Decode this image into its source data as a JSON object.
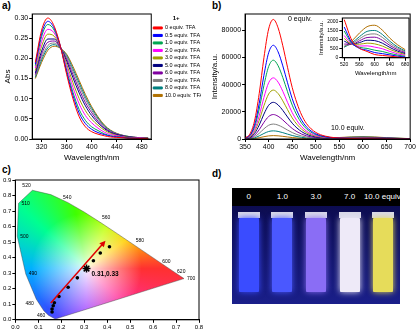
{
  "chart_data": [
    {
      "type": "line",
      "title": "a)",
      "x_label": "Wavelength/nm",
      "y_label": "Abs",
      "x": [
        310,
        320,
        330,
        340,
        350,
        360,
        370,
        380,
        390,
        400,
        410,
        420,
        430,
        440,
        450,
        460,
        470,
        480,
        490
      ],
      "series": [
        {
          "name": "0 equiv. TFA",
          "color": "#ff0000",
          "values": [
            0.19,
            0.27,
            0.3,
            0.28,
            0.23,
            0.16,
            0.1,
            0.055,
            0.03,
            0.018,
            0.012,
            0.008,
            0.005,
            0.004,
            0.003,
            0.002,
            0.002,
            0.001,
            0.001
          ]
        },
        {
          "name": "0.5 equiv. TFA",
          "color": "#0000ff",
          "values": [
            0.186,
            0.262,
            0.292,
            0.275,
            0.23,
            0.165,
            0.108,
            0.064,
            0.038,
            0.024,
            0.016,
            0.011,
            0.007,
            0.005,
            0.004,
            0.002,
            0.002,
            0.001,
            0.001
          ]
        },
        {
          "name": "1.0 equiv. TFA",
          "color": "#00a651",
          "values": [
            0.182,
            0.254,
            0.284,
            0.27,
            0.229,
            0.17,
            0.116,
            0.073,
            0.046,
            0.03,
            0.021,
            0.013,
            0.008,
            0.006,
            0.004,
            0.003,
            0.002,
            0.001,
            0.001
          ]
        },
        {
          "name": "2.0 equiv. TFA",
          "color": "#ff00ff",
          "values": [
            0.176,
            0.242,
            0.272,
            0.263,
            0.228,
            0.178,
            0.128,
            0.087,
            0.058,
            0.04,
            0.027,
            0.017,
            0.011,
            0.008,
            0.005,
            0.003,
            0.003,
            0.002,
            0.001
          ]
        },
        {
          "name": "3.0 equiv. TFA",
          "color": "#a0a000",
          "values": [
            0.17,
            0.23,
            0.26,
            0.255,
            0.228,
            0.185,
            0.14,
            0.1,
            0.07,
            0.049,
            0.034,
            0.022,
            0.014,
            0.009,
            0.006,
            0.004,
            0.003,
            0.002,
            0.002
          ]
        },
        {
          "name": "5.0 equiv. TFA",
          "color": "#000080",
          "values": [
            0.164,
            0.218,
            0.248,
            0.248,
            0.227,
            0.193,
            0.152,
            0.114,
            0.082,
            0.058,
            0.04,
            0.026,
            0.016,
            0.011,
            0.007,
            0.005,
            0.003,
            0.002,
            0.002
          ]
        },
        {
          "name": "6.0 equiv. TFA",
          "color": "#7f00a0",
          "values": [
            0.16,
            0.21,
            0.24,
            0.243,
            0.226,
            0.198,
            0.16,
            0.123,
            0.09,
            0.065,
            0.044,
            0.028,
            0.018,
            0.012,
            0.008,
            0.005,
            0.004,
            0.003,
            0.002
          ]
        },
        {
          "name": "7.0 equiv. TFA",
          "color": "#808080",
          "values": [
            0.156,
            0.202,
            0.232,
            0.238,
            0.226,
            0.203,
            0.168,
            0.132,
            0.098,
            0.071,
            0.049,
            0.031,
            0.019,
            0.013,
            0.008,
            0.005,
            0.004,
            0.003,
            0.002
          ]
        },
        {
          "name": "8.0 equiv. TFA",
          "color": "#008080",
          "values": [
            0.153,
            0.196,
            0.226,
            0.234,
            0.225,
            0.207,
            0.174,
            0.139,
            0.104,
            0.076,
            0.052,
            0.033,
            0.021,
            0.013,
            0.009,
            0.006,
            0.004,
            0.003,
            0.002
          ]
        },
        {
          "name": "10.0 equiv. TFA",
          "color": "#b07000",
          "values": [
            0.15,
            0.19,
            0.22,
            0.23,
            0.225,
            0.21,
            0.18,
            0.145,
            0.11,
            0.08,
            0.055,
            0.035,
            0.022,
            0.014,
            0.009,
            0.006,
            0.004,
            0.003,
            0.002
          ]
        }
      ],
      "xlim": [
        305,
        495
      ],
      "xticks": [
        320,
        360,
        400,
        440,
        480
      ],
      "ylim": [
        0,
        0.31
      ],
      "yticks": [
        {
          "value": 0,
          "label": "0.00"
        },
        {
          "value": 0.05,
          "label": "0.05"
        },
        {
          "value": 0.1,
          "label": "0.10"
        },
        {
          "value": 0.15,
          "label": "0.15"
        },
        {
          "value": 0.2,
          "label": "0.20"
        },
        {
          "value": 0.25,
          "label": "0.25"
        },
        {
          "value": 0.3,
          "label": "0.30"
        }
      ],
      "legend": "right",
      "legend_title": "1+",
      "grid": false
    },
    {
      "type": "line",
      "title": "b)",
      "x_label": "Wavelength/nm",
      "y_label": "Intensity/a.u.",
      "annotations": [
        "0 equiv.",
        "10.0 equiv."
      ],
      "x": [
        350,
        360,
        370,
        380,
        390,
        400,
        410,
        420,
        430,
        440,
        450,
        460,
        470,
        480,
        490,
        500,
        510,
        520,
        530,
        540,
        550,
        600,
        650,
        700
      ],
      "series": [
        {
          "color": "#ff0000",
          "values": [
            880,
            3520,
            13200,
            33440,
            59840,
            80960,
            88000,
            81840,
            68640,
            52800,
            37840,
            26400,
            17600,
            11440,
            7480,
            4840,
            3170,
            2110,
            1410,
            970,
            700,
            180,
            90,
            0
          ]
        },
        {
          "color": "#0000ff",
          "values": [
            690,
            2760,
            10350,
            26220,
            46920,
            63480,
            69000,
            64170,
            53820,
            41400,
            29670,
            20700,
            13800,
            8970,
            5870,
            3800,
            2510,
            1700,
            1160,
            840,
            640,
            290,
            150,
            20
          ]
        },
        {
          "color": "#00a651",
          "values": [
            580,
            2320,
            8700,
            22040,
            39440,
            53360,
            58000,
            53940,
            45240,
            34800,
            24940,
            17400,
            11600,
            7540,
            4930,
            3190,
            2150,
            1480,
            1050,
            790,
            640,
            420,
            230,
            50
          ]
        },
        {
          "color": "#ff00ff",
          "values": [
            450,
            1800,
            6750,
            17100,
            30600,
            41400,
            45000,
            41850,
            35100,
            27000,
            19350,
            13500,
            9000,
            5850,
            3830,
            2480,
            1720,
            1230,
            920,
            750,
            660,
            590,
            330,
            80
          ]
        },
        {
          "color": "#a0a000",
          "values": [
            360,
            1440,
            5400,
            13680,
            24480,
            33120,
            36000,
            33480,
            28080,
            21600,
            15480,
            10800,
            7200,
            4680,
            3060,
            1980,
            1440,
            1070,
            860,
            750,
            710,
            770,
            430,
            100
          ]
        },
        {
          "color": "#000080",
          "values": [
            270,
            1080,
            4050,
            10260,
            18360,
            24840,
            27000,
            25110,
            21060,
            16200,
            11610,
            8100,
            5400,
            3510,
            2300,
            1490,
            1150,
            920,
            790,
            750,
            760,
            950,
            530,
            140
          ]
        },
        {
          "color": "#7f00a0",
          "values": [
            180,
            720,
            2700,
            6840,
            12240,
            16560,
            18000,
            16740,
            14040,
            10800,
            7740,
            5400,
            3600,
            2340,
            1530,
            990,
            870,
            760,
            730,
            750,
            800,
            1140,
            630,
            170
          ]
        },
        {
          "color": "#808080",
          "values": [
            110,
            440,
            1650,
            4180,
            7480,
            10120,
            11000,
            10230,
            8580,
            6600,
            4730,
            3300,
            2200,
            1430,
            940,
            610,
            660,
            650,
            700,
            770,
            870,
            1320,
            730,
            200
          ]
        },
        {
          "color": "#008080",
          "values": [
            60,
            240,
            900,
            2280,
            4080,
            5520,
            6000,
            5580,
            4680,
            3600,
            2580,
            1800,
            1200,
            780,
            510,
            330,
            520,
            590,
            700,
            820,
            950,
            1510,
            840,
            230
          ]
        },
        {
          "color": "#b07000",
          "values": [
            25,
            100,
            375,
            950,
            1700,
            2300,
            2500,
            2325,
            1950,
            1500,
            1075,
            750,
            500,
            325,
            215,
            140,
            450,
            600,
            760,
            930,
            1100,
            1800,
            990,
            270
          ]
        }
      ],
      "xlim": [
        350,
        700
      ],
      "xticks": [
        350,
        400,
        450,
        500,
        550,
        600,
        650,
        700
      ],
      "ylim": [
        0,
        92000
      ],
      "yticks": [
        0,
        20000,
        40000,
        60000,
        80000
      ],
      "grid": false,
      "inset": {
        "type": "line",
        "x_label": "Wavelength/nm",
        "y_label": "Intensity/a.u.",
        "x": [
          520,
          540,
          560,
          580,
          600,
          620,
          640,
          660,
          680
        ],
        "series": [
          {
            "color": "#ff0000",
            "values": [
              2110,
              970,
              530,
              350,
              180,
              130,
              90,
              40,
              0
            ]
          },
          {
            "color": "#0000ff",
            "values": [
              1700,
              840,
              520,
              420,
              290,
              230,
              160,
              90,
              40
            ]
          },
          {
            "color": "#00a651",
            "values": [
              1480,
              790,
              580,
              520,
              420,
              350,
              240,
              150,
              80
            ]
          },
          {
            "color": "#ff00ff",
            "values": [
              1230,
              750,
              650,
              660,
              590,
              500,
              350,
              220,
              130
            ]
          },
          {
            "color": "#a0a000",
            "values": [
              1070,
              750,
              750,
              810,
              770,
              650,
              460,
              300,
              180
            ]
          },
          {
            "color": "#000080",
            "values": [
              920,
              750,
              840,
              970,
              950,
              810,
              570,
              370,
              230
            ]
          },
          {
            "color": "#7f00a0",
            "values": [
              760,
              750,
              940,
              1120,
              1140,
              970,
              680,
              450,
              280
            ]
          },
          {
            "color": "#808080",
            "values": [
              650,
              770,
              1050,
              1280,
              1320,
              1130,
              790,
              530,
              330
            ]
          },
          {
            "color": "#008080",
            "values": [
              590,
              820,
              1170,
              1460,
              1510,
              1290,
              910,
              600,
              380
            ]
          },
          {
            "color": "#b07000",
            "values": [
              600,
              930,
              1370,
              1720,
              1800,
              1530,
              1080,
              720,
              450
            ]
          }
        ],
        "xlim": [
          515,
          690
        ],
        "xticks": [
          520,
          560,
          600,
          640,
          680
        ],
        "ylim": [
          0,
          2200
        ],
        "yticks": [
          0,
          500,
          1000,
          1500,
          2000
        ],
        "grid": false
      }
    },
    {
      "type": "scatter",
      "title": "c)",
      "locus": {
        "x": [
          0.1741,
          0.144,
          0.1241,
          0.0913,
          0.0454,
          0.0082,
          0.0139,
          0.0743,
          0.1547,
          0.2296,
          0.3016,
          0.3731,
          0.4441,
          0.5125,
          0.5752,
          0.627,
          0.6915,
          0.7347
        ],
        "y": [
          0.005,
          0.0297,
          0.0578,
          0.1327,
          0.295,
          0.5384,
          0.7502,
          0.8338,
          0.8059,
          0.7543,
          0.6923,
          0.6245,
          0.5547,
          0.4866,
          0.4242,
          0.3725,
          0.3083,
          0.2653
        ],
        "point_labels": [
          null,
          "460",
          null,
          "480",
          "490",
          "500",
          "510",
          "520",
          null,
          "540",
          null,
          "560",
          null,
          "580",
          null,
          "600",
          "620",
          "700"
        ]
      },
      "series": [
        {
          "color": "#000000",
          "marker": "circle",
          "x": [
            0.16,
            0.16,
            0.165,
            0.17,
            0.19,
            0.23,
            0.27,
            0.34,
            0.37,
            0.41
          ],
          "y": [
            0.05,
            0.07,
            0.09,
            0.11,
            0.15,
            0.21,
            0.27,
            0.38,
            0.43,
            0.47
          ]
        },
        {
          "color": "#000000",
          "marker": "star",
          "x": [
            0.31
          ],
          "y": [
            0.33
          ],
          "data_labels": true,
          "value_labels": [
            "0.31,0.33"
          ]
        }
      ],
      "xlim": [
        0,
        0.8
      ],
      "xticks": [
        {
          "value": 0,
          "label": "0.0"
        },
        {
          "value": 0.1,
          "label": "0.1"
        },
        {
          "value": 0.2,
          "label": "0.2"
        },
        {
          "value": 0.3,
          "label": "0.3"
        },
        {
          "value": 0.4,
          "label": "0.4"
        },
        {
          "value": 0.5,
          "label": "0.5"
        },
        {
          "value": 0.6,
          "label": "0.6"
        },
        {
          "value": 0.7,
          "label": "0.7"
        },
        {
          "value": 0.8,
          "label": "0.8"
        }
      ],
      "ylim": [
        0,
        0.9
      ],
      "yticks": [
        {
          "value": 0,
          "label": "0.0"
        },
        {
          "value": 0.1,
          "label": "0.1"
        },
        {
          "value": 0.2,
          "label": "0.2"
        },
        {
          "value": 0.3,
          "label": "0.3"
        },
        {
          "value": 0.4,
          "label": "0.4"
        },
        {
          "value": 0.5,
          "label": "0.5"
        },
        {
          "value": 0.6,
          "label": "0.6"
        },
        {
          "value": 0.7,
          "label": "0.7"
        },
        {
          "value": 0.8,
          "label": "0.8"
        },
        {
          "value": 0.9,
          "label": "0.9"
        }
      ],
      "grid": false
    }
  ],
  "photo": {
    "title": "d)",
    "labels": [
      "0",
      "1.0",
      "3.0",
      "7.0",
      "10.0 equiv."
    ],
    "colors": [
      "#3a4cff",
      "#4a58ff",
      "#8a6df5",
      "#eeeaf8",
      "#e6dc5a"
    ]
  }
}
